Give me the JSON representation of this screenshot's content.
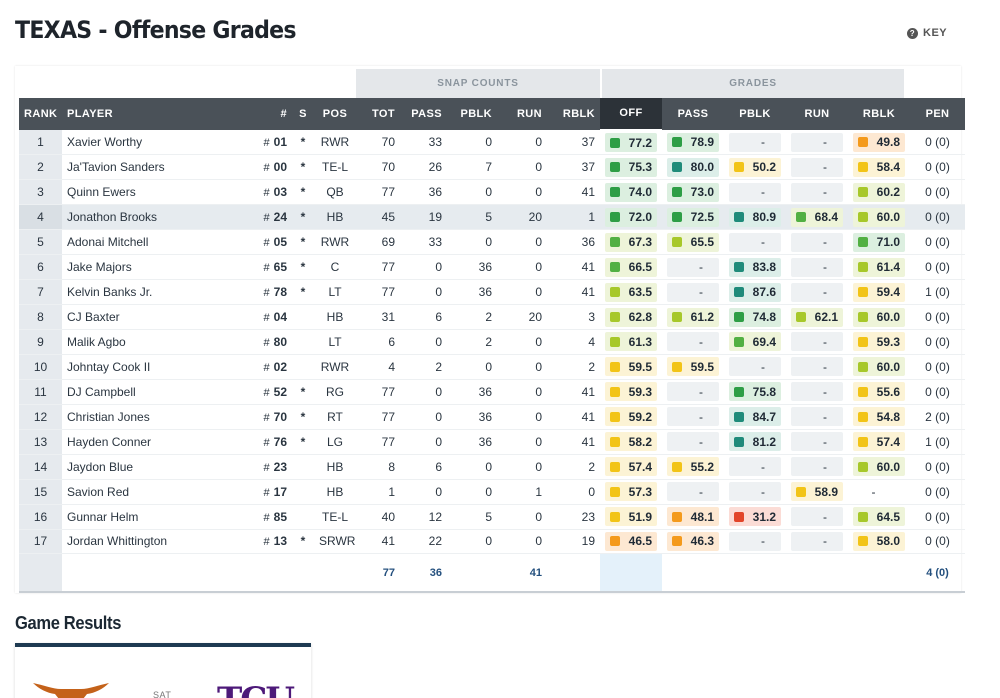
{
  "page": {
    "title": "TEXAS - Offense Grades",
    "key_label": "KEY"
  },
  "groups": {
    "snap_counts": "SNAP COUNTS",
    "grades": "GRADES"
  },
  "columns": [
    "RANK",
    "PLAYER",
    "#",
    "S",
    "POS",
    "TOT",
    "PASS",
    "PBLK",
    "RUN",
    "RBLK",
    "OFF",
    "PASS",
    "PBLK",
    "RUN",
    "RBLK",
    "PEN"
  ],
  "grade_colors": {
    "dark_green": "#2e9e46",
    "green": "#52b043",
    "lime": "#a7c82a",
    "yellow": "#f2c417",
    "orange": "#f49a1c",
    "red": "#e2452a",
    "teal": "#1f8b7a"
  },
  "rows": [
    {
      "rank": "1",
      "player": "Xavier Worthy",
      "num": "01",
      "starter": "*",
      "pos": "RWR",
      "tot": "70",
      "pass": "33",
      "pblk": "0",
      "run": "0",
      "rblk": "37",
      "off": "77.2",
      "g_pass": "78.9",
      "g_pblk": "-",
      "g_run": "-",
      "g_rblk": "49.8",
      "pen": "0 (0)"
    },
    {
      "rank": "2",
      "player": "Ja'Tavion Sanders",
      "num": "00",
      "starter": "*",
      "pos": "TE-L",
      "tot": "70",
      "pass": "26",
      "pblk": "7",
      "run": "0",
      "rblk": "37",
      "off": "75.3",
      "g_pass": "80.0",
      "g_pblk": "50.2",
      "g_run": "-",
      "g_rblk": "58.4",
      "pen": "0 (0)"
    },
    {
      "rank": "3",
      "player": "Quinn Ewers",
      "num": "03",
      "starter": "*",
      "pos": "QB",
      "tot": "77",
      "pass": "36",
      "pblk": "0",
      "run": "0",
      "rblk": "41",
      "off": "74.0",
      "g_pass": "73.0",
      "g_pblk": "-",
      "g_run": "-",
      "g_rblk": "60.2",
      "pen": "0 (0)"
    },
    {
      "rank": "4",
      "player": "Jonathon Brooks",
      "num": "24",
      "starter": "*",
      "pos": "HB",
      "tot": "45",
      "pass": "19",
      "pblk": "5",
      "run": "20",
      "rblk": "1",
      "off": "72.0",
      "g_pass": "72.5",
      "g_pblk": "80.9",
      "g_run": "68.4",
      "g_rblk": "60.0",
      "pen": "0 (0)"
    },
    {
      "rank": "5",
      "player": "Adonai Mitchell",
      "num": "05",
      "starter": "*",
      "pos": "RWR",
      "tot": "69",
      "pass": "33",
      "pblk": "0",
      "run": "0",
      "rblk": "36",
      "off": "67.3",
      "g_pass": "65.5",
      "g_pblk": "-",
      "g_run": "-",
      "g_rblk": "71.0",
      "pen": "0 (0)"
    },
    {
      "rank": "6",
      "player": "Jake Majors",
      "num": "65",
      "starter": "*",
      "pos": "C",
      "tot": "77",
      "pass": "0",
      "pblk": "36",
      "run": "0",
      "rblk": "41",
      "off": "66.5",
      "g_pass": "-",
      "g_pblk": "83.8",
      "g_run": "-",
      "g_rblk": "61.4",
      "pen": "0 (0)"
    },
    {
      "rank": "7",
      "player": "Kelvin Banks Jr.",
      "num": "78",
      "starter": "*",
      "pos": "LT",
      "tot": "77",
      "pass": "0",
      "pblk": "36",
      "run": "0",
      "rblk": "41",
      "off": "63.5",
      "g_pass": "-",
      "g_pblk": "87.6",
      "g_run": "-",
      "g_rblk": "59.4",
      "pen": "1 (0)"
    },
    {
      "rank": "8",
      "player": "CJ Baxter",
      "num": "04",
      "starter": "",
      "pos": "HB",
      "tot": "31",
      "pass": "6",
      "pblk": "2",
      "run": "20",
      "rblk": "3",
      "off": "62.8",
      "g_pass": "61.2",
      "g_pblk": "74.8",
      "g_run": "62.1",
      "g_rblk": "60.0",
      "pen": "0 (0)"
    },
    {
      "rank": "9",
      "player": "Malik Agbo",
      "num": "80",
      "starter": "",
      "pos": "LT",
      "tot": "6",
      "pass": "0",
      "pblk": "2",
      "run": "0",
      "rblk": "4",
      "off": "61.3",
      "g_pass": "-",
      "g_pblk": "69.4",
      "g_run": "-",
      "g_rblk": "59.3",
      "pen": "0 (0)"
    },
    {
      "rank": "10",
      "player": "Johntay Cook II",
      "num": "02",
      "starter": "",
      "pos": "RWR",
      "tot": "4",
      "pass": "2",
      "pblk": "0",
      "run": "0",
      "rblk": "2",
      "off": "59.5",
      "g_pass": "59.5",
      "g_pblk": "-",
      "g_run": "-",
      "g_rblk": "60.0",
      "pen": "0 (0)"
    },
    {
      "rank": "11",
      "player": "DJ Campbell",
      "num": "52",
      "starter": "*",
      "pos": "RG",
      "tot": "77",
      "pass": "0",
      "pblk": "36",
      "run": "0",
      "rblk": "41",
      "off": "59.3",
      "g_pass": "-",
      "g_pblk": "75.8",
      "g_run": "-",
      "g_rblk": "55.6",
      "pen": "0 (0)"
    },
    {
      "rank": "12",
      "player": "Christian Jones",
      "num": "70",
      "starter": "*",
      "pos": "RT",
      "tot": "77",
      "pass": "0",
      "pblk": "36",
      "run": "0",
      "rblk": "41",
      "off": "59.2",
      "g_pass": "-",
      "g_pblk": "84.7",
      "g_run": "-",
      "g_rblk": "54.8",
      "pen": "2 (0)"
    },
    {
      "rank": "13",
      "player": "Hayden Conner",
      "num": "76",
      "starter": "*",
      "pos": "LG",
      "tot": "77",
      "pass": "0",
      "pblk": "36",
      "run": "0",
      "rblk": "41",
      "off": "58.2",
      "g_pass": "-",
      "g_pblk": "81.2",
      "g_run": "-",
      "g_rblk": "57.4",
      "pen": "1 (0)"
    },
    {
      "rank": "14",
      "player": "Jaydon Blue",
      "num": "23",
      "starter": "",
      "pos": "HB",
      "tot": "8",
      "pass": "6",
      "pblk": "0",
      "run": "0",
      "rblk": "2",
      "off": "57.4",
      "g_pass": "55.2",
      "g_pblk": "-",
      "g_run": "-",
      "g_rblk": "60.0",
      "pen": "0 (0)"
    },
    {
      "rank": "15",
      "player": "Savion Red",
      "num": "17",
      "starter": "",
      "pos": "HB",
      "tot": "1",
      "pass": "0",
      "pblk": "0",
      "run": "1",
      "rblk": "0",
      "off": "57.3",
      "g_pass": "-",
      "g_pblk": "-",
      "g_run": "58.9",
      "g_rblk": "-",
      "pen": "0 (0)"
    },
    {
      "rank": "16",
      "player": "Gunnar Helm",
      "num": "85",
      "starter": "",
      "pos": "TE-L",
      "tot": "40",
      "pass": "12",
      "pblk": "5",
      "run": "0",
      "rblk": "23",
      "off": "51.9",
      "g_pass": "48.1",
      "g_pblk": "31.2",
      "g_run": "-",
      "g_rblk": "64.5",
      "pen": "0 (0)"
    },
    {
      "rank": "17",
      "player": "Jordan Whittington",
      "num": "13",
      "starter": "*",
      "pos": "SRWR",
      "tot": "41",
      "pass": "22",
      "pblk": "0",
      "run": "0",
      "rblk": "19",
      "off": "46.5",
      "g_pass": "46.3",
      "g_pblk": "-",
      "g_run": "-",
      "g_rblk": "58.0",
      "pen": "0 (0)"
    }
  ],
  "totals": {
    "tot": "77",
    "pass": "36",
    "run": "41",
    "pen": "4 (0)"
  },
  "game_results": {
    "title": "Game Results",
    "day": "SAT",
    "opponent_logo_text": "TCU"
  }
}
